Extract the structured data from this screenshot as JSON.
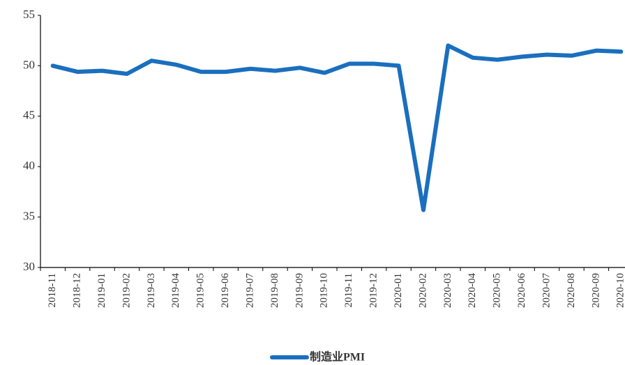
{
  "chart_data": {
    "type": "line",
    "categories": [
      "2018-11",
      "2018-12",
      "2019-01",
      "2019-02",
      "2019-03",
      "2019-04",
      "2019-05",
      "2019-06",
      "2019-07",
      "2019-08",
      "2019-09",
      "2019-10",
      "2019-11",
      "2019-12",
      "2020-01",
      "2020-02",
      "2020-03",
      "2020-04",
      "2020-05",
      "2020-06",
      "2020-07",
      "2020-08",
      "2020-09",
      "2020-10"
    ],
    "series": [
      {
        "name": "制造业PMI",
        "color": "#1a6fbe",
        "values": [
          50.0,
          49.4,
          49.5,
          49.2,
          50.5,
          50.1,
          49.4,
          49.4,
          49.7,
          49.5,
          49.8,
          49.3,
          50.2,
          50.2,
          50.0,
          35.7,
          52.0,
          50.8,
          50.6,
          50.9,
          51.1,
          51.0,
          51.5,
          51.4
        ]
      }
    ],
    "ylim": [
      30,
      55
    ],
    "yticks": [
      30,
      35,
      40,
      45,
      50,
      55
    ],
    "grid": false,
    "legend": "bottom"
  }
}
